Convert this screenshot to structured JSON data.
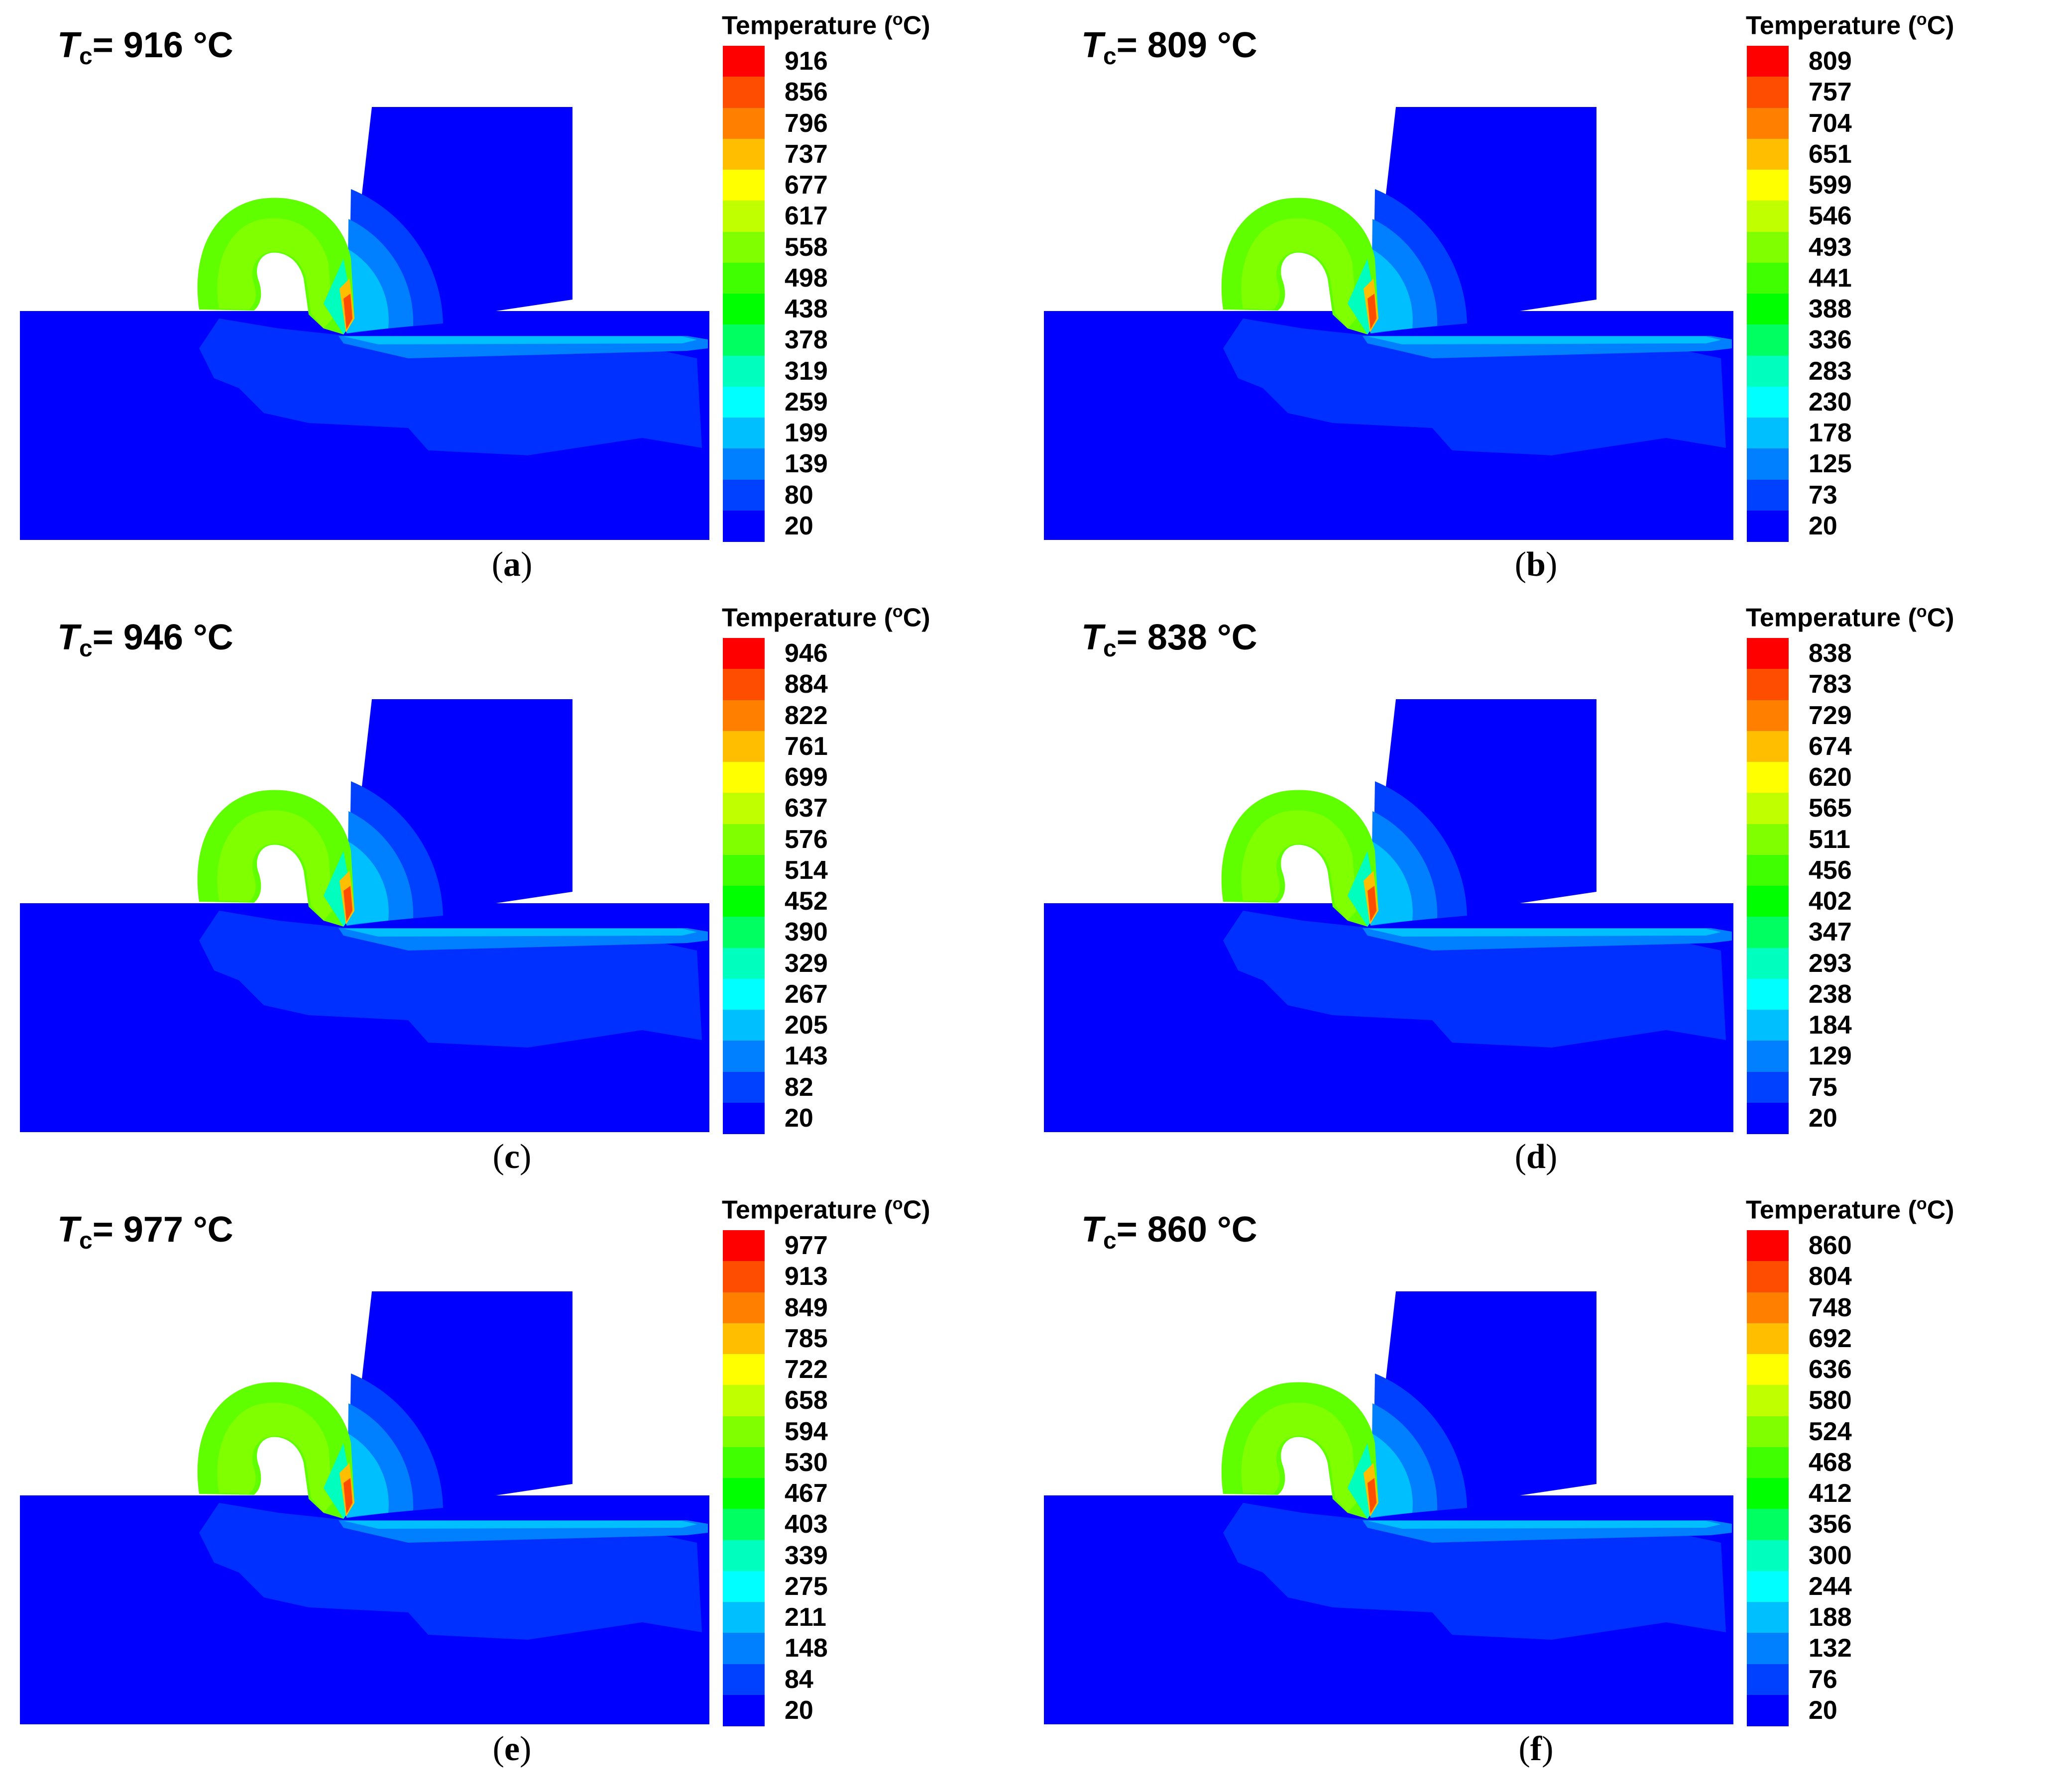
{
  "figure": {
    "legend_colors": [
      "#ff0000",
      "#ff4d00",
      "#ff8000",
      "#ffbf00",
      "#ffff00",
      "#bfff00",
      "#80ff00",
      "#40ff00",
      "#00ff00",
      "#00ff60",
      "#00ffbf",
      "#00ffff",
      "#00bfff",
      "#0080ff",
      "#0040ff",
      "#0000ff"
    ],
    "panels": [
      {
        "tc_symbol": "T",
        "tc_sub": "c",
        "tc_value": "= 916 °C",
        "legend_title_main": "Temperature (",
        "legend_title_deg": "o",
        "legend_title_end": "C)",
        "legend_ticks": [
          "916",
          "856",
          "796",
          "737",
          "677",
          "617",
          "558",
          "498",
          "438",
          "378",
          "319",
          "259",
          "199",
          "139",
          "80",
          "20"
        ],
        "letter": "a"
      },
      {
        "tc_symbol": "T",
        "tc_sub": "c",
        "tc_value": "= 809 °C",
        "legend_title_main": "Temperature (",
        "legend_title_deg": "o",
        "legend_title_end": "C)",
        "legend_ticks": [
          "809",
          "757",
          "704",
          "651",
          "599",
          "546",
          "493",
          "441",
          "388",
          "336",
          "283",
          "230",
          "178",
          "125",
          "73",
          "20"
        ],
        "letter": "b"
      },
      {
        "tc_symbol": "T",
        "tc_sub": "c",
        "tc_value": "= 946 °C",
        "legend_title_main": "Temperature (",
        "legend_title_deg": "o",
        "legend_title_end": "C)",
        "legend_ticks": [
          "946",
          "884",
          "822",
          "761",
          "699",
          "637",
          "576",
          "514",
          "452",
          "390",
          "329",
          "267",
          "205",
          "143",
          "82",
          "20"
        ],
        "letter": "c"
      },
      {
        "tc_symbol": "T",
        "tc_sub": "c",
        "tc_value": "= 838 °C",
        "legend_title_main": "Temperature (",
        "legend_title_deg": "o",
        "legend_title_end": "C)",
        "legend_ticks": [
          "838",
          "783",
          "729",
          "674",
          "620",
          "565",
          "511",
          "456",
          "402",
          "347",
          "293",
          "238",
          "184",
          "129",
          "75",
          "20"
        ],
        "letter": "d"
      },
      {
        "tc_symbol": "T",
        "tc_sub": "c",
        "tc_value": "= 977 °C",
        "legend_title_main": "Temperature (",
        "legend_title_deg": "o",
        "legend_title_end": "C)",
        "legend_ticks": [
          "977",
          "913",
          "849",
          "785",
          "722",
          "658",
          "594",
          "530",
          "467",
          "403",
          "339",
          "275",
          "211",
          "148",
          "84",
          "20"
        ],
        "letter": "e"
      },
      {
        "tc_symbol": "T",
        "tc_sub": "c",
        "tc_value": "= 860 °C",
        "legend_title_main": "Temperature (",
        "legend_title_deg": "o",
        "legend_title_end": "C)",
        "legend_ticks": [
          "860",
          "804",
          "748",
          "692",
          "636",
          "580",
          "524",
          "468",
          "412",
          "356",
          "300",
          "244",
          "188",
          "132",
          "76",
          "20"
        ],
        "letter": "f"
      }
    ]
  }
}
